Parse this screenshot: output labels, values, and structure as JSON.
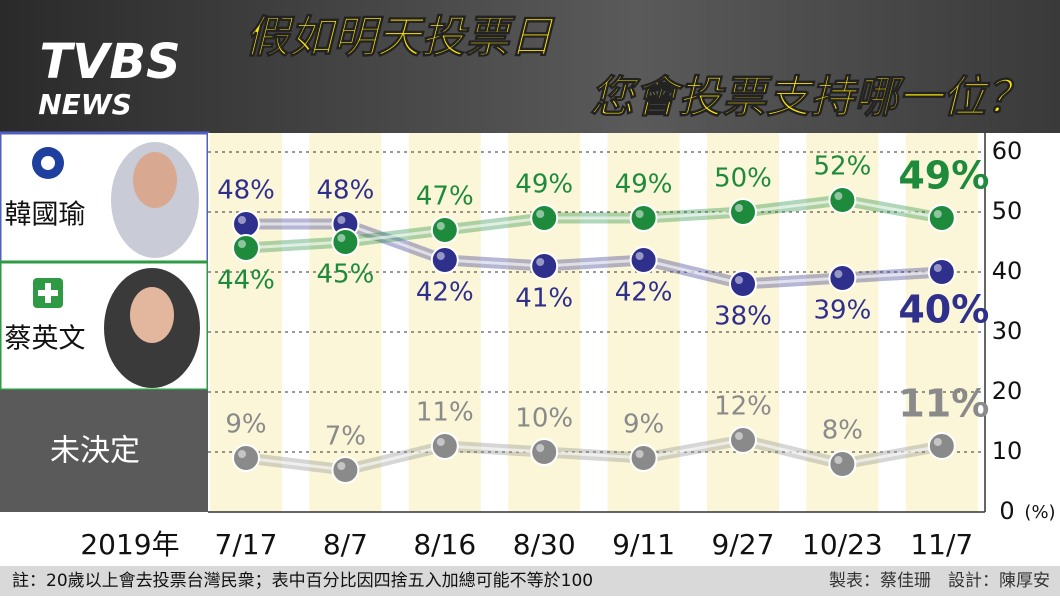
{
  "chart_data": {
    "type": "line",
    "title": [
      "假如明天投票日",
      "您會投票支持哪一位？"
    ],
    "logo": [
      "TVBS",
      "NEWS"
    ],
    "x_label": "2019年",
    "y_unit": "(%)",
    "categories": [
      "7/17",
      "8/7",
      "8/16",
      "8/30",
      "9/11",
      "9/27",
      "10/23",
      "11/7"
    ],
    "series": [
      {
        "name": "韓國瑜",
        "color": "#2f2f8c",
        "values": [
          48,
          48,
          42,
          41,
          42,
          38,
          39,
          40
        ],
        "value_labels": [
          "48%",
          "48%",
          "42%",
          "41%",
          "42%",
          "38%",
          "39%",
          "40%"
        ]
      },
      {
        "name": "蔡英文",
        "color": "#1e8a3c",
        "values": [
          44,
          45,
          47,
          49,
          49,
          50,
          52,
          49
        ],
        "value_labels": [
          "44%",
          "45%",
          "47%",
          "49%",
          "49%",
          "50%",
          "52%",
          "49%"
        ]
      },
      {
        "name": "未決定",
        "color": "#8a8a8a",
        "values": [
          9,
          7,
          11,
          10,
          9,
          12,
          8,
          11
        ],
        "value_labels": [
          "9%",
          "7%",
          "11%",
          "10%",
          "9%",
          "12%",
          "8%",
          "11%"
        ]
      }
    ],
    "ylim": [
      0,
      60
    ],
    "yticks": [
      0,
      10,
      20,
      30,
      40,
      50,
      60
    ],
    "grid": true,
    "note": "註：20歲以上會去投票台灣民衆；表中百分比因四捨五入加總可能不等於100",
    "credits": "製表：蔡佳珊　設計：陳厚安"
  }
}
